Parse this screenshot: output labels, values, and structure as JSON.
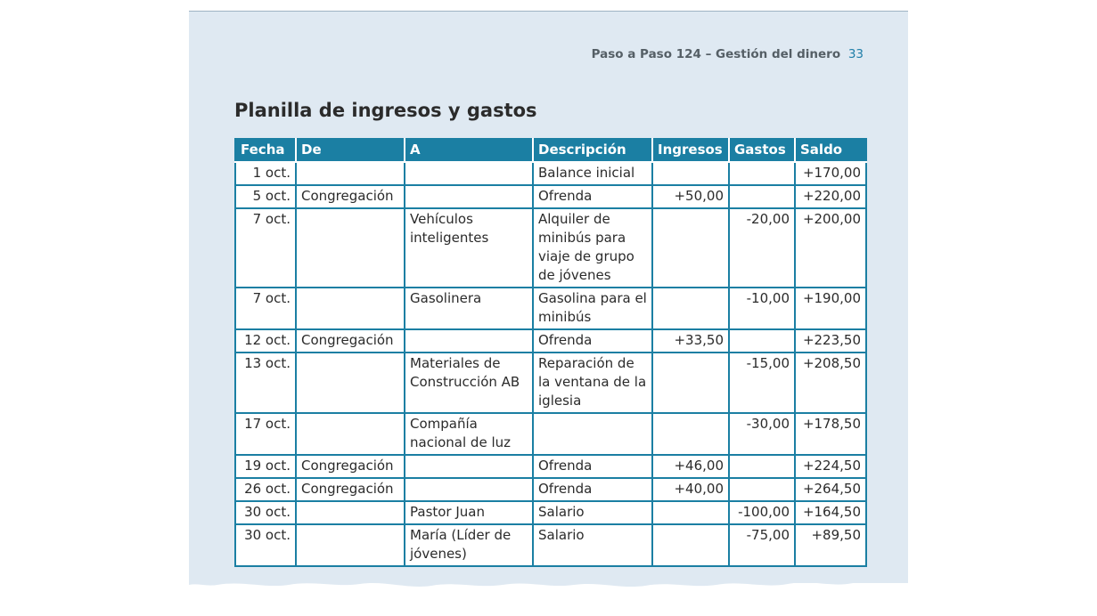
{
  "header": {
    "running_title": "Paso a Paso 124 – Gestión del dinero",
    "page_number": "33"
  },
  "title": "Planilla de ingresos y gastos",
  "table": {
    "columns": [
      "Fecha",
      "De",
      "A",
      "Descripción",
      "Ingresos",
      "Gastos",
      "Saldo"
    ],
    "rows": [
      [
        "1 oct.",
        "",
        "",
        "Balance inicial",
        "",
        "",
        "+170,00"
      ],
      [
        "5 oct.",
        "Congregación",
        "",
        "Ofrenda",
        "+50,00",
        "",
        "+220,00"
      ],
      [
        "7 oct.",
        "",
        "Vehículos inteligentes",
        "Alquiler de minibús para viaje de grupo de jóvenes",
        "",
        "-20,00",
        "+200,00"
      ],
      [
        "7 oct.",
        "",
        "Gasolinera",
        "Gasolina para el minibús",
        "",
        "-10,00",
        "+190,00"
      ],
      [
        "12 oct.",
        "Congregación",
        "",
        "Ofrenda",
        "+33,50",
        "",
        "+223,50"
      ],
      [
        "13 oct.",
        "",
        "Materiales de Construcción AB",
        "Reparación de la ventana de la iglesia",
        "",
        "-15,00",
        "+208,50"
      ],
      [
        "17 oct.",
        "",
        "Compañía nacional de luz",
        "",
        "",
        "-30,00",
        "+178,50"
      ],
      [
        "19 oct.",
        "Congregación",
        "",
        "Ofrenda",
        "+46,00",
        "",
        "+224,50"
      ],
      [
        "26 oct.",
        "Congregación",
        "",
        "Ofrenda",
        "+40,00",
        "",
        "+264,50"
      ],
      [
        "30 oct.",
        "",
        "Pastor Juan",
        "Salario",
        "",
        "-100,00",
        "+164,50"
      ],
      [
        "30 oct.",
        "",
        "María (Líder de jóvenes)",
        "Salario",
        "",
        "-75,00",
        "+89,50"
      ]
    ]
  },
  "colors": {
    "page_background": "#dfe9f2",
    "table_accent": "#1b7fa3",
    "page_number": "#1f7ea8"
  }
}
